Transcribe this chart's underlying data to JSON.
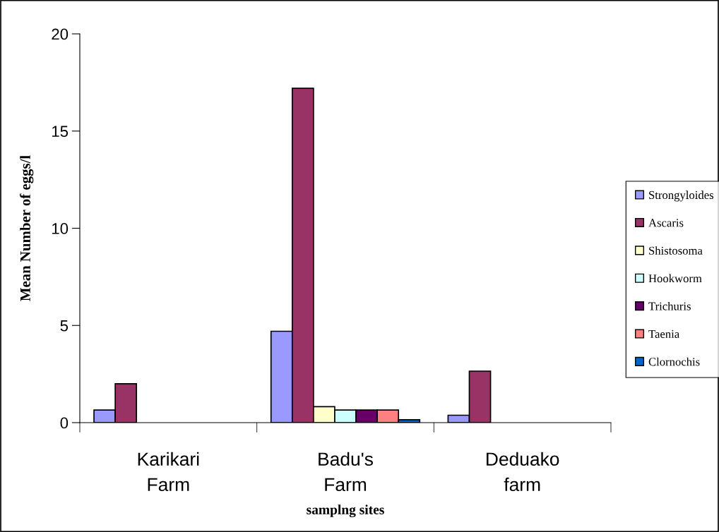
{
  "chart_data": {
    "type": "bar",
    "xlabel": "samplng sites",
    "ylabel": "Mean Number of eggs/l",
    "categories": [
      "Karikari\nFarm",
      "Badu's\nFarm",
      "Deduako\nfarm"
    ],
    "series": [
      {
        "name": "Strongyloides",
        "color": "#9999ff",
        "values": [
          0.65,
          4.7,
          0.38
        ]
      },
      {
        "name": "Ascaris",
        "color": "#993366",
        "values": [
          2.0,
          17.2,
          2.65
        ]
      },
      {
        "name": "Shistosoma",
        "color": "#ffffcc",
        "values": [
          null,
          0.82,
          null
        ]
      },
      {
        "name": "Hookworm",
        "color": "#ccffff",
        "values": [
          null,
          0.65,
          null
        ]
      },
      {
        "name": "Trichuris",
        "color": "#660066",
        "values": [
          null,
          0.65,
          null
        ]
      },
      {
        "name": "Taenia",
        "color": "#ff8080",
        "values": [
          null,
          0.65,
          null
        ]
      },
      {
        "name": "Clornochis",
        "color": "#0066cc",
        "values": [
          null,
          0.15,
          null
        ]
      }
    ],
    "ylim": [
      0,
      20
    ],
    "yticks": [
      0,
      5,
      10,
      15,
      20
    ],
    "grid": false,
    "legend": "right"
  }
}
